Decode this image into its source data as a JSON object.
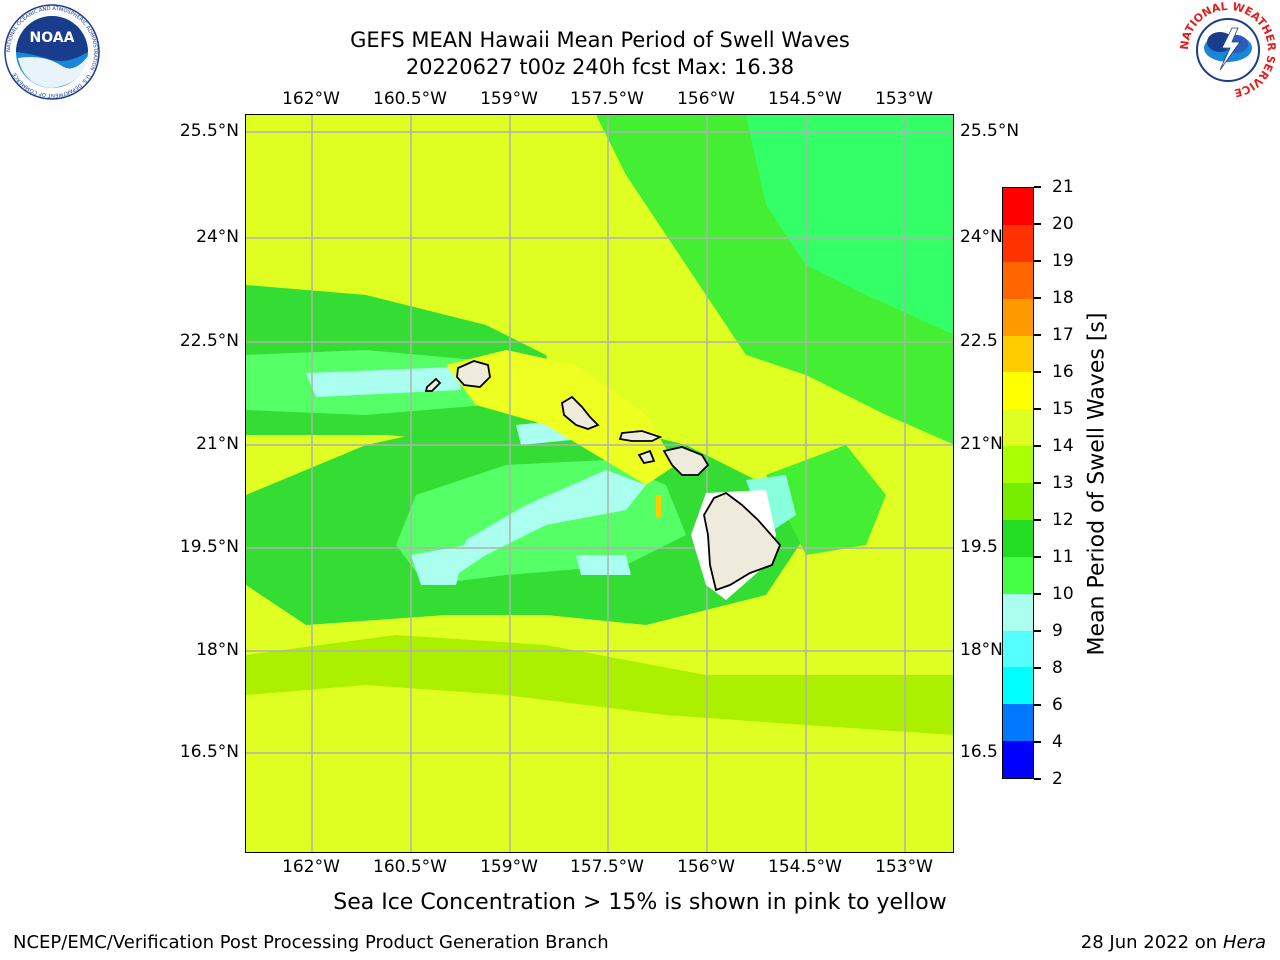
{
  "header": {
    "title_line1": "GEFS MEAN Hawaii Mean Period of Swell Waves",
    "title_line2": "20220627 t00z 240h fcst   Max: 16.38"
  },
  "logos": {
    "noaa_text": "NOAA",
    "noaa_ring": "NATIONAL OCEANIC AND ATMOSPHERIC ADMINISTRATION · U.S. DEPARTMENT OF COMMERCE",
    "nws_ring": "NATIONAL WEATHER SERVICE"
  },
  "map": {
    "lon_labels": [
      "162°W",
      "160.5°W",
      "159°W",
      "157.5°W",
      "156°W",
      "154.5°W",
      "153°W"
    ],
    "lat_labels_left": [
      "25.5°N",
      "24°N",
      "22.5°N",
      "21°N",
      "19.5°N",
      "18°N",
      "16.5°N"
    ],
    "lat_labels_right": [
      "25.5°N",
      "24°N",
      "22.5",
      "21°N",
      "19.5",
      "18°N",
      "16.5"
    ],
    "colors": {
      "background": "#dfff22",
      "green": "#22dd22",
      "light_green": "#55ff55",
      "cyan": "#aaffee",
      "land": "#eeeadc",
      "grid": "#b0b0b0"
    }
  },
  "colorbar": {
    "label": "Mean Period of Swell Waves [s]",
    "ticks": [
      "2",
      "4",
      "6",
      "8",
      "9",
      "10",
      "11",
      "12",
      "13",
      "14",
      "15",
      "16",
      "17",
      "18",
      "19",
      "20",
      "21"
    ],
    "colors": [
      "#0000ff",
      "#0077ff",
      "#00ffff",
      "#55ffff",
      "#aaffee",
      "#44ff44",
      "#22dd22",
      "#77ee00",
      "#aaff00",
      "#dfff22",
      "#ffff00",
      "#ffcc00",
      "#ff9900",
      "#ff6600",
      "#ff3300",
      "#ff0000"
    ]
  },
  "footer": {
    "note": "Sea Ice Concentration > 15% is shown in pink to yellow",
    "left": "NCEP/EMC/Verification Post Processing Product Generation Branch",
    "date": "28 Jun 2022 on",
    "machine": "Hera"
  }
}
